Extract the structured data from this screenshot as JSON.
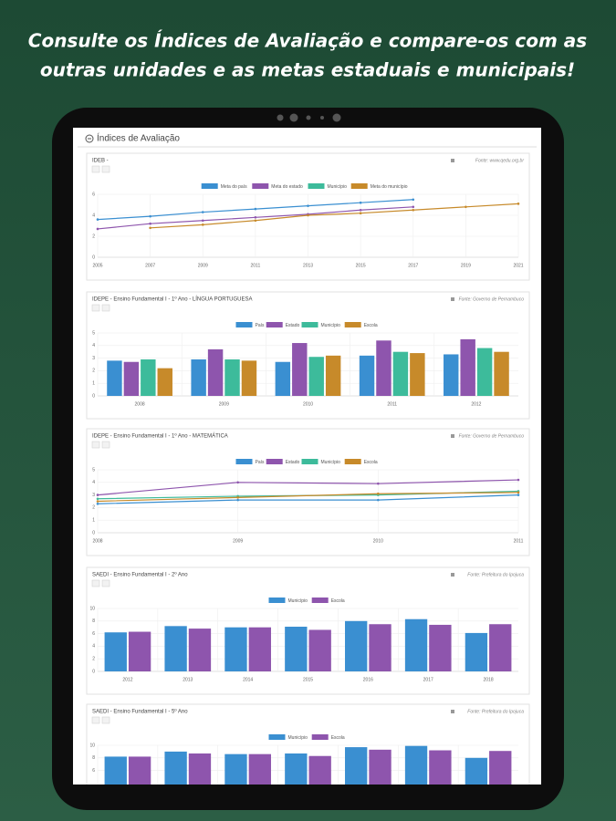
{
  "header": {
    "lines": [
      "Consulte os Índices de Avaliação e compare-os com as",
      "outras unidades e  as metas estaduais e municipais!"
    ]
  },
  "panel_title": "Índices de Avaliação",
  "chart_data": [
    {
      "type": "line",
      "title": "IDEB -",
      "source": "Fonte: www.qedu.org.br",
      "categories": [
        "2005",
        "2007",
        "2009",
        "2011",
        "2013",
        "2015",
        "2017",
        "2019",
        "2021"
      ],
      "series": [
        {
          "name": "Meta do país",
          "color": "#3a8fd1",
          "values": [
            3.6,
            3.9,
            4.3,
            4.6,
            4.9,
            5.2,
            5.5,
            null,
            null
          ]
        },
        {
          "name": "Meta do estado",
          "color": "#8e55ad",
          "values": [
            2.7,
            3.2,
            3.5,
            3.8,
            4.1,
            4.5,
            4.8,
            null,
            null
          ]
        },
        {
          "name": "Município",
          "color": "#3dbb9b",
          "values": [
            null,
            null,
            null,
            null,
            null,
            null,
            null,
            null,
            null
          ]
        },
        {
          "name": "Meta do município",
          "color": "#c78a2a",
          "values": [
            null,
            2.8,
            3.1,
            3.5,
            4.0,
            4.2,
            4.5,
            4.8,
            5.1
          ]
        }
      ],
      "ylim": [
        0,
        6
      ],
      "yticks": [
        0,
        2,
        4,
        6
      ],
      "grid": true
    },
    {
      "type": "bar",
      "title": "IDEPE - Ensino Fundamental I - 1º Ano - LÍNGUA PORTUGUESA",
      "source": "Fonte: Governo de Pernambuco",
      "categories": [
        "2008",
        "2009",
        "2010",
        "2011",
        "2012"
      ],
      "series": [
        {
          "name": "País",
          "color": "#3a8fd1",
          "values": [
            2.8,
            2.9,
            2.7,
            3.2,
            3.3
          ]
        },
        {
          "name": "Estado",
          "color": "#8e55ad",
          "values": [
            2.7,
            3.7,
            4.2,
            4.4,
            4.5
          ]
        },
        {
          "name": "Município",
          "color": "#3dbb9b",
          "values": [
            2.9,
            2.9,
            3.1,
            3.5,
            3.8
          ]
        },
        {
          "name": "Escola",
          "color": "#c78a2a",
          "values": [
            2.2,
            2.8,
            3.2,
            3.4,
            3.5
          ]
        }
      ],
      "ylim": [
        0,
        5
      ],
      "yticks": [
        0,
        1,
        2,
        3,
        4,
        5
      ],
      "grid": true
    },
    {
      "type": "line",
      "title": "IDEPE - Ensino Fundamental I - 1º Ano - MATEMÁTICA",
      "source": "Fonte: Governo de Pernambuco",
      "categories": [
        "2008",
        "2009",
        "2010",
        "2011"
      ],
      "series": [
        {
          "name": "País",
          "color": "#3a8fd1",
          "values": [
            2.3,
            2.6,
            2.6,
            3.0
          ]
        },
        {
          "name": "Estado",
          "color": "#8e55ad",
          "values": [
            3.0,
            4.0,
            3.9,
            4.2
          ]
        },
        {
          "name": "Município",
          "color": "#3dbb9b",
          "values": [
            2.7,
            2.9,
            3.0,
            3.3
          ]
        },
        {
          "name": "Escola",
          "color": "#c78a2a",
          "values": [
            2.5,
            2.8,
            3.1,
            3.2
          ]
        }
      ],
      "ylim": [
        0,
        5
      ],
      "yticks": [
        0,
        1,
        2,
        3,
        4,
        5
      ],
      "grid": true
    },
    {
      "type": "bar",
      "title": "SAEDI - Ensino Fundamental I - 2º Ano",
      "source": "Fonte: Prefeitura do Ipojuca",
      "categories": [
        "2012",
        "2013",
        "2014",
        "2015",
        "2016",
        "2017",
        "2018"
      ],
      "series": [
        {
          "name": "Município",
          "color": "#3a8fd1",
          "values": [
            6.2,
            7.2,
            7.0,
            7.1,
            8.0,
            8.3,
            6.1
          ]
        },
        {
          "name": "Escola",
          "color": "#8e55ad",
          "values": [
            6.3,
            6.8,
            7.0,
            6.6,
            7.5,
            7.4,
            7.5
          ]
        }
      ],
      "ylim": [
        0,
        10
      ],
      "yticks": [
        0,
        2,
        4,
        6,
        8,
        10
      ],
      "grid": true
    },
    {
      "type": "bar",
      "title": "SAEDI - Ensino Fundamental I - 5º Ano",
      "source": "Fonte: Prefeitura do Ipojuca",
      "categories": [
        null,
        null,
        null,
        null,
        null,
        null,
        null
      ],
      "series": [
        {
          "name": "Município",
          "color": "#3a8fd1",
          "values": [
            8.2,
            9.0,
            8.6,
            8.7,
            9.7,
            9.9,
            8.0
          ]
        },
        {
          "name": "Escola",
          "color": "#8e55ad",
          "values": [
            8.2,
            8.7,
            8.6,
            8.3,
            9.3,
            9.2,
            9.1
          ]
        }
      ],
      "ylim": [
        0,
        10
      ],
      "yticks": [
        6,
        8,
        10
      ],
      "grid": true
    }
  ]
}
